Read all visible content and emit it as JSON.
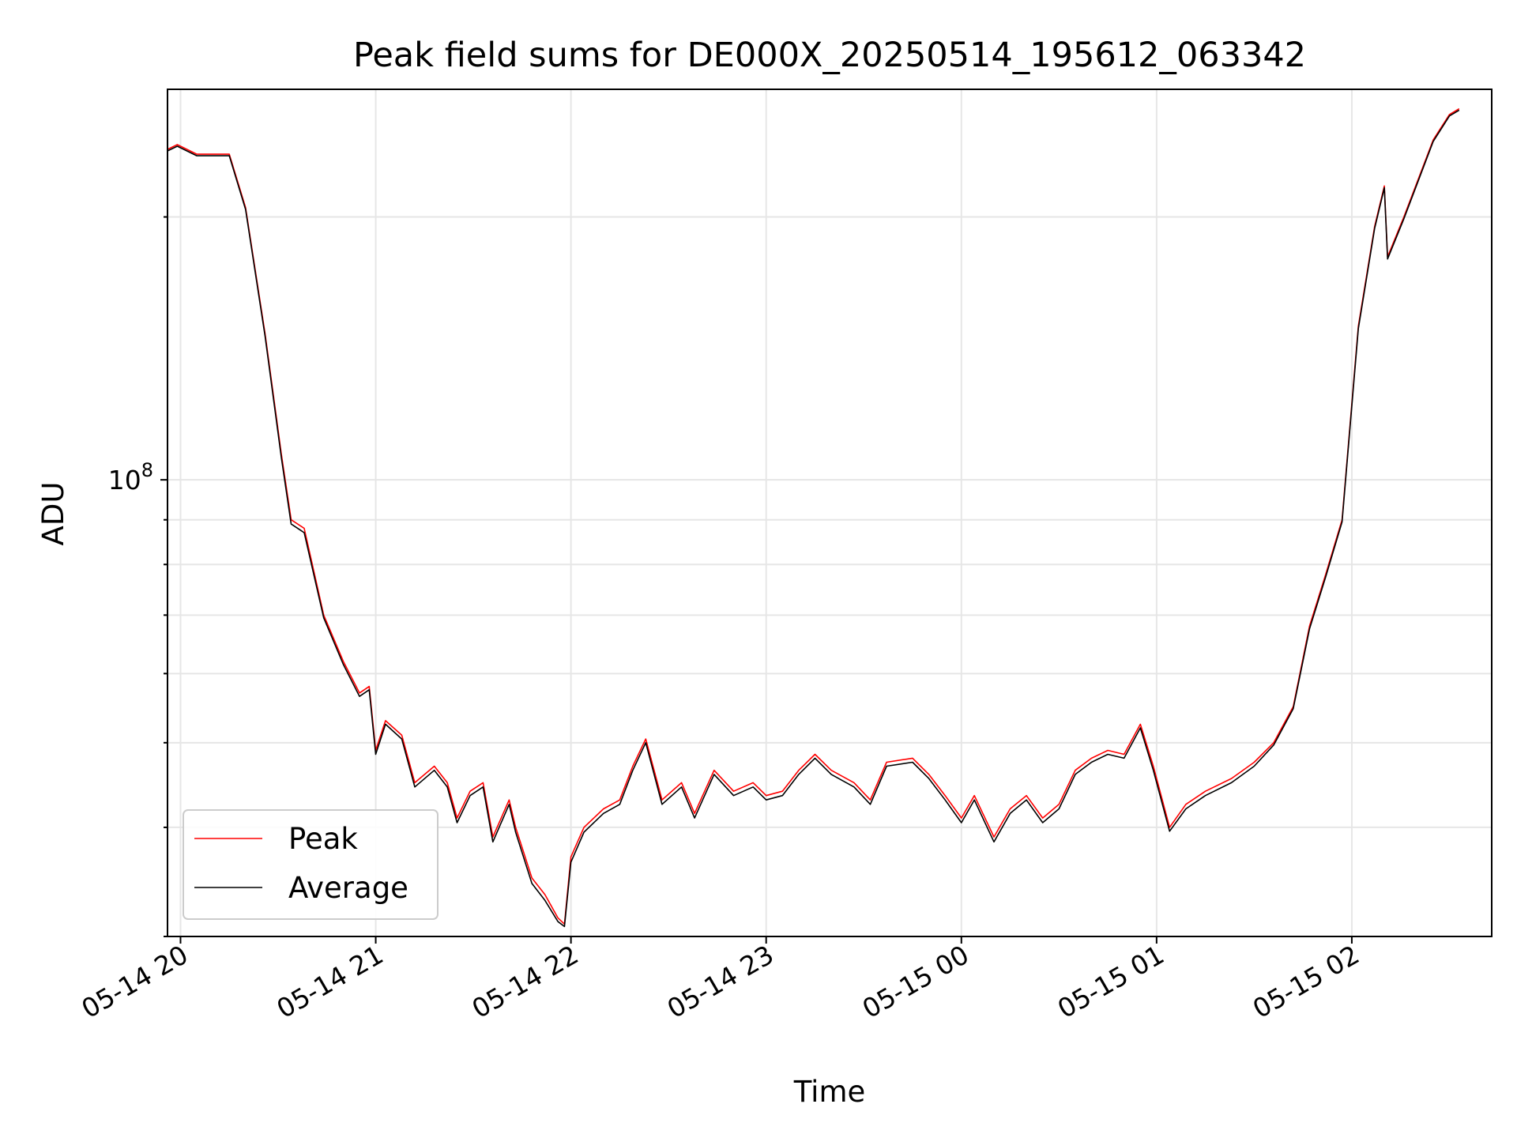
{
  "chart_data": {
    "type": "line",
    "title": "Peak field sums for DE000X_20250514_195612_063342",
    "xlabel": "Time",
    "ylabel": "ADU",
    "y_scale": "log",
    "grid": true,
    "legend_position": "lower-left",
    "x_ticks": [
      "05-14 20",
      "05-14 21",
      "05-14 22",
      "05-14 23",
      "05-15 00",
      "05-15 01",
      "05-15 02"
    ],
    "y_tick_major": {
      "base": "10",
      "exponent": "8"
    },
    "xlim": [
      "2025-05-14 19:56",
      "2025-05-15 02:43"
    ],
    "ylim": [
      30000000,
      280000000
    ],
    "series": [
      {
        "name": "Peak",
        "color": "#ff0000",
        "points": [
          [
            "2025-05-14 19:56",
            239000000
          ],
          [
            "2025-05-14 19:59",
            242000000
          ],
          [
            "2025-05-14 20:05",
            236000000
          ],
          [
            "2025-05-14 20:10",
            236000000
          ],
          [
            "2025-05-14 20:15",
            236000000
          ],
          [
            "2025-05-14 20:20",
            205000000
          ],
          [
            "2025-05-14 20:26",
            147000000
          ],
          [
            "2025-05-14 20:31",
            107000000
          ],
          [
            "2025-05-14 20:34",
            90000000
          ],
          [
            "2025-05-14 20:38",
            88000000
          ],
          [
            "2025-05-14 20:44",
            70000000
          ],
          [
            "2025-05-14 20:50",
            62000000
          ],
          [
            "2025-05-14 20:55",
            57000000
          ],
          [
            "2025-05-14 20:58",
            58000000
          ],
          [
            "2025-05-14 21:00",
            49000000
          ],
          [
            "2025-05-14 21:03",
            53000000
          ],
          [
            "2025-05-14 21:08",
            51000000
          ],
          [
            "2025-05-14 21:12",
            45000000
          ],
          [
            "2025-05-14 21:18",
            47000000
          ],
          [
            "2025-05-14 21:22",
            45000000
          ],
          [
            "2025-05-14 21:25",
            41000000
          ],
          [
            "2025-05-14 21:29",
            44000000
          ],
          [
            "2025-05-14 21:33",
            45000000
          ],
          [
            "2025-05-14 21:36",
            39000000
          ],
          [
            "2025-05-14 21:41",
            43000000
          ],
          [
            "2025-05-14 21:43",
            40000000
          ],
          [
            "2025-05-14 21:48",
            35000000
          ],
          [
            "2025-05-14 21:52",
            33500000
          ],
          [
            "2025-05-14 21:56",
            31500000
          ],
          [
            "2025-05-14 21:58",
            31000000
          ],
          [
            "2025-05-14 22:00",
            37000000
          ],
          [
            "2025-05-14 22:04",
            40000000
          ],
          [
            "2025-05-14 22:10",
            42000000
          ],
          [
            "2025-05-14 22:15",
            43000000
          ],
          [
            "2025-05-14 22:19",
            47000000
          ],
          [
            "2025-05-14 22:23",
            50500000
          ],
          [
            "2025-05-14 22:28",
            43000000
          ],
          [
            "2025-05-14 22:34",
            45000000
          ],
          [
            "2025-05-14 22:38",
            41500000
          ],
          [
            "2025-05-14 22:44",
            46500000
          ],
          [
            "2025-05-14 22:50",
            44000000
          ],
          [
            "2025-05-14 22:56",
            45000000
          ],
          [
            "2025-05-14 23:00",
            43500000
          ],
          [
            "2025-05-14 23:05",
            44000000
          ],
          [
            "2025-05-14 23:10",
            46500000
          ],
          [
            "2025-05-14 23:15",
            48500000
          ],
          [
            "2025-05-14 23:20",
            46500000
          ],
          [
            "2025-05-14 23:27",
            45000000
          ],
          [
            "2025-05-14 23:32",
            43000000
          ],
          [
            "2025-05-14 23:37",
            47500000
          ],
          [
            "2025-05-14 23:45",
            48000000
          ],
          [
            "2025-05-14 23:50",
            46000000
          ],
          [
            "2025-05-14 23:55",
            43500000
          ],
          [
            "2025-05-15 00:00",
            41000000
          ],
          [
            "2025-05-15 00:04",
            43500000
          ],
          [
            "2025-05-15 00:10",
            39000000
          ],
          [
            "2025-05-15 00:15",
            42000000
          ],
          [
            "2025-05-15 00:20",
            43500000
          ],
          [
            "2025-05-15 00:25",
            41000000
          ],
          [
            "2025-05-15 00:30",
            42500000
          ],
          [
            "2025-05-15 00:35",
            46500000
          ],
          [
            "2025-05-15 00:40",
            48000000
          ],
          [
            "2025-05-15 00:45",
            49000000
          ],
          [
            "2025-05-15 00:50",
            48500000
          ],
          [
            "2025-05-15 00:55",
            52500000
          ],
          [
            "2025-05-15 00:59",
            47000000
          ],
          [
            "2025-05-15 01:04",
            40000000
          ],
          [
            "2025-05-15 01:09",
            42500000
          ],
          [
            "2025-05-15 01:15",
            44000000
          ],
          [
            "2025-05-15 01:23",
            45500000
          ],
          [
            "2025-05-15 01:30",
            47500000
          ],
          [
            "2025-05-15 01:36",
            50000000
          ],
          [
            "2025-05-15 01:42",
            55000000
          ],
          [
            "2025-05-15 01:47",
            68000000
          ],
          [
            "2025-05-15 01:52",
            78000000
          ],
          [
            "2025-05-15 01:57",
            90000000
          ],
          [
            "2025-05-15 02:02",
            150000000
          ],
          [
            "2025-05-15 02:07",
            195000000
          ],
          [
            "2025-05-15 02:10",
            217000000
          ],
          [
            "2025-05-15 02:11",
            180000000
          ],
          [
            "2025-05-15 02:16",
            200000000
          ],
          [
            "2025-05-15 02:25",
            245000000
          ],
          [
            "2025-05-15 02:30",
            262000000
          ],
          [
            "2025-05-15 02:33",
            266000000
          ]
        ]
      },
      {
        "name": "Average",
        "color": "#000000",
        "points": [
          [
            "2025-05-14 19:56",
            238000000
          ],
          [
            "2025-05-14 19:59",
            241000000
          ],
          [
            "2025-05-14 20:05",
            235000000
          ],
          [
            "2025-05-14 20:10",
            235000000
          ],
          [
            "2025-05-14 20:15",
            235000000
          ],
          [
            "2025-05-14 20:20",
            204000000
          ],
          [
            "2025-05-14 20:26",
            146000000
          ],
          [
            "2025-05-14 20:31",
            106000000
          ],
          [
            "2025-05-14 20:34",
            89000000
          ],
          [
            "2025-05-14 20:38",
            87000000
          ],
          [
            "2025-05-14 20:44",
            69500000
          ],
          [
            "2025-05-14 20:50",
            61500000
          ],
          [
            "2025-05-14 20:55",
            56500000
          ],
          [
            "2025-05-14 20:58",
            57500000
          ],
          [
            "2025-05-14 21:00",
            48500000
          ],
          [
            "2025-05-14 21:03",
            52500000
          ],
          [
            "2025-05-14 21:08",
            50500000
          ],
          [
            "2025-05-14 21:12",
            44500000
          ],
          [
            "2025-05-14 21:18",
            46500000
          ],
          [
            "2025-05-14 21:22",
            44500000
          ],
          [
            "2025-05-14 21:25",
            40500000
          ],
          [
            "2025-05-14 21:29",
            43500000
          ],
          [
            "2025-05-14 21:33",
            44500000
          ],
          [
            "2025-05-14 21:36",
            38500000
          ],
          [
            "2025-05-14 21:41",
            42500000
          ],
          [
            "2025-05-14 21:43",
            39500000
          ],
          [
            "2025-05-14 21:48",
            34500000
          ],
          [
            "2025-05-14 21:52",
            33000000
          ],
          [
            "2025-05-14 21:56",
            31200000
          ],
          [
            "2025-05-14 21:58",
            30800000
          ],
          [
            "2025-05-14 22:00",
            36500000
          ],
          [
            "2025-05-14 22:04",
            39500000
          ],
          [
            "2025-05-14 22:10",
            41500000
          ],
          [
            "2025-05-14 22:15",
            42500000
          ],
          [
            "2025-05-14 22:19",
            46500000
          ],
          [
            "2025-05-14 22:23",
            50000000
          ],
          [
            "2025-05-14 22:28",
            42500000
          ],
          [
            "2025-05-14 22:34",
            44500000
          ],
          [
            "2025-05-14 22:38",
            41000000
          ],
          [
            "2025-05-14 22:44",
            46000000
          ],
          [
            "2025-05-14 22:50",
            43500000
          ],
          [
            "2025-05-14 22:56",
            44500000
          ],
          [
            "2025-05-14 23:00",
            43000000
          ],
          [
            "2025-05-14 23:05",
            43500000
          ],
          [
            "2025-05-14 23:10",
            46000000
          ],
          [
            "2025-05-14 23:15",
            48000000
          ],
          [
            "2025-05-14 23:20",
            46000000
          ],
          [
            "2025-05-14 23:27",
            44500000
          ],
          [
            "2025-05-14 23:32",
            42500000
          ],
          [
            "2025-05-14 23:37",
            47000000
          ],
          [
            "2025-05-14 23:45",
            47500000
          ],
          [
            "2025-05-14 23:50",
            45500000
          ],
          [
            "2025-05-14 23:55",
            43000000
          ],
          [
            "2025-05-15 00:00",
            40500000
          ],
          [
            "2025-05-15 00:04",
            43000000
          ],
          [
            "2025-05-15 00:10",
            38500000
          ],
          [
            "2025-05-15 00:15",
            41500000
          ],
          [
            "2025-05-15 00:20",
            43000000
          ],
          [
            "2025-05-15 00:25",
            40500000
          ],
          [
            "2025-05-15 00:30",
            42000000
          ],
          [
            "2025-05-15 00:35",
            46000000
          ],
          [
            "2025-05-15 00:40",
            47500000
          ],
          [
            "2025-05-15 00:45",
            48500000
          ],
          [
            "2025-05-15 00:50",
            48000000
          ],
          [
            "2025-05-15 00:55",
            52000000
          ],
          [
            "2025-05-15 00:59",
            46500000
          ],
          [
            "2025-05-15 01:04",
            39600000
          ],
          [
            "2025-05-15 01:09",
            42000000
          ],
          [
            "2025-05-15 01:15",
            43500000
          ],
          [
            "2025-05-15 01:23",
            45000000
          ],
          [
            "2025-05-15 01:30",
            47000000
          ],
          [
            "2025-05-15 01:36",
            49700000
          ],
          [
            "2025-05-15 01:42",
            54700000
          ],
          [
            "2025-05-15 01:47",
            67500000
          ],
          [
            "2025-05-15 01:52",
            77500000
          ],
          [
            "2025-05-15 01:57",
            89500000
          ],
          [
            "2025-05-15 02:02",
            149000000
          ],
          [
            "2025-05-15 02:07",
            194000000
          ],
          [
            "2025-05-15 02:10",
            216000000
          ],
          [
            "2025-05-15 02:11",
            179000000
          ],
          [
            "2025-05-15 02:16",
            199000000
          ],
          [
            "2025-05-15 02:25",
            244000000
          ],
          [
            "2025-05-15 02:30",
            261000000
          ],
          [
            "2025-05-15 02:33",
            265000000
          ]
        ]
      }
    ]
  }
}
